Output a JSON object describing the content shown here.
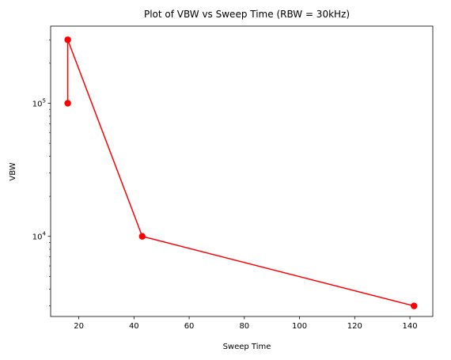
{
  "chart_data": {
    "type": "line",
    "title": "Plot of VBW vs Sweep Time (RBW = 30kHz)",
    "xlabel": "Sweep Time",
    "ylabel": "VBW",
    "xlim": [
      9.8,
      148.3
    ],
    "ylim": [
      2500,
      380000
    ],
    "yscale": "log",
    "xticks": [
      20,
      40,
      60,
      80,
      100,
      120,
      140
    ],
    "yticks_major": [
      {
        "value": 10000,
        "base": "10",
        "exp": "4"
      },
      {
        "value": 100000,
        "base": "10",
        "exp": "5"
      }
    ],
    "grid": false,
    "series": [
      {
        "color": "#ff0000",
        "marker": "circle",
        "points": [
          {
            "x": 16,
            "y": 100000
          },
          {
            "x": 16,
            "y": 300000
          },
          {
            "x": 43,
            "y": 10000
          },
          {
            "x": 141.5,
            "y": 3000
          }
        ]
      }
    ]
  }
}
